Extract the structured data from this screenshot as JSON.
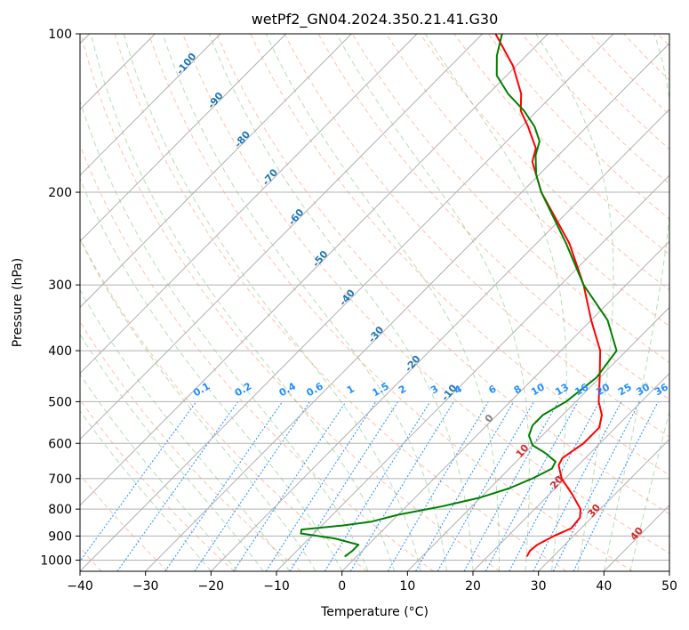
{
  "chart_data": {
    "type": "line",
    "title": "wetPf2_GN04.2024.350.21.41.G30",
    "xlabel": "Temperature (°C)",
    "ylabel": "Pressure (hPa)",
    "xlim": [
      -40,
      50
    ],
    "ylim": [
      1050,
      100
    ],
    "y_scale": "log",
    "grid": true,
    "x_ticks": [
      -40,
      -30,
      -20,
      -10,
      0,
      10,
      20,
      30,
      40,
      50
    ],
    "y_ticks": [
      100,
      200,
      300,
      400,
      500,
      600,
      700,
      800,
      900,
      1000
    ],
    "series": [
      {
        "color": "#ff0000",
        "points": [
          {
            "p": 985,
            "t": 26.0
          },
          {
            "p": 960,
            "t": 25.6
          },
          {
            "p": 935,
            "t": 25.8
          },
          {
            "p": 900,
            "t": 27.0
          },
          {
            "p": 870,
            "t": 28.5
          },
          {
            "p": 830,
            "t": 28.2
          },
          {
            "p": 800,
            "t": 27.0
          },
          {
            "p": 750,
            "t": 23.5
          },
          {
            "p": 700,
            "t": 19.5
          },
          {
            "p": 660,
            "t": 17.0
          },
          {
            "p": 640,
            "t": 16.5
          },
          {
            "p": 600,
            "t": 17.5
          },
          {
            "p": 560,
            "t": 17.5
          },
          {
            "p": 530,
            "t": 16.0
          },
          {
            "p": 500,
            "t": 13.5
          },
          {
            "p": 450,
            "t": 10.0
          },
          {
            "p": 400,
            "t": 6.0
          },
          {
            "p": 350,
            "t": 0.0
          },
          {
            "p": 300,
            "t": -6.5
          },
          {
            "p": 250,
            "t": -15.0
          },
          {
            "p": 200,
            "t": -27.0
          },
          {
            "p": 175,
            "t": -33.0
          },
          {
            "p": 165,
            "t": -34.5
          },
          {
            "p": 150,
            "t": -39.0
          },
          {
            "p": 140,
            "t": -42.5
          },
          {
            "p": 130,
            "t": -45.0
          },
          {
            "p": 115,
            "t": -50.5
          },
          {
            "p": 100,
            "t": -58.0
          }
        ]
      },
      {
        "color": "#008000",
        "points": [
          {
            "p": 985,
            "t": -1.8
          },
          {
            "p": 960,
            "t": -1.5
          },
          {
            "p": 935,
            "t": -1.5
          },
          {
            "p": 910,
            "t": -6.0
          },
          {
            "p": 890,
            "t": -12.0
          },
          {
            "p": 875,
            "t": -12.5
          },
          {
            "p": 860,
            "t": -7.0
          },
          {
            "p": 845,
            "t": -3.0
          },
          {
            "p": 820,
            "t": 0.0
          },
          {
            "p": 790,
            "t": 5.5
          },
          {
            "p": 760,
            "t": 10.0
          },
          {
            "p": 730,
            "t": 13.0
          },
          {
            "p": 700,
            "t": 15.0
          },
          {
            "p": 670,
            "t": 16.5
          },
          {
            "p": 650,
            "t": 16.0
          },
          {
            "p": 625,
            "t": 13.0
          },
          {
            "p": 605,
            "t": 10.0
          },
          {
            "p": 580,
            "t": 8.0
          },
          {
            "p": 555,
            "t": 7.0
          },
          {
            "p": 530,
            "t": 7.0
          },
          {
            "p": 500,
            "t": 8.5
          },
          {
            "p": 450,
            "t": 9.5
          },
          {
            "p": 400,
            "t": 8.5
          },
          {
            "p": 350,
            "t": 2.5
          },
          {
            "p": 300,
            "t": -6.5
          },
          {
            "p": 250,
            "t": -15.5
          },
          {
            "p": 200,
            "t": -27.0
          },
          {
            "p": 185,
            "t": -30.5
          },
          {
            "p": 170,
            "t": -33.5
          },
          {
            "p": 160,
            "t": -35.0
          },
          {
            "p": 150,
            "t": -38.0
          },
          {
            "p": 140,
            "t": -42.0
          },
          {
            "p": 130,
            "t": -47.0
          },
          {
            "p": 120,
            "t": -51.5
          },
          {
            "p": 110,
            "t": -54.5
          },
          {
            "p": 100,
            "t": -57.0
          }
        ]
      }
    ],
    "reference_lines": {
      "isotherms": {
        "color": "#b0b0b0"
      },
      "dry_adiabats": {
        "color": "#ffa07a",
        "style": "dashed"
      },
      "moist_adiabats": {
        "color": "#2ca02c",
        "style": "dashed"
      },
      "mixing_ratio": {
        "color": "#1e90ff",
        "style": "dotted"
      }
    },
    "isotherm_labels": [
      {
        "text": "-100",
        "t": -100,
        "p": 115
      },
      {
        "text": "-90",
        "t": -90,
        "p": 135
      },
      {
        "text": "-80",
        "t": -80,
        "p": 160
      },
      {
        "text": "-70",
        "t": -70,
        "p": 189
      },
      {
        "text": "-60",
        "t": -60,
        "p": 225
      },
      {
        "text": "-50",
        "t": -50,
        "p": 270
      },
      {
        "text": "-40",
        "t": -40,
        "p": 320
      },
      {
        "text": "-30",
        "t": -30,
        "p": 376
      },
      {
        "text": "-20",
        "t": -20,
        "p": 427
      },
      {
        "text": "-10",
        "t": -10,
        "p": 485
      },
      {
        "text": "0",
        "t": 0,
        "p": 543
      },
      {
        "text": "10",
        "t": 10,
        "p": 626
      },
      {
        "text": "20",
        "t": 20,
        "p": 718
      },
      {
        "text": "30",
        "t": 30,
        "p": 813
      },
      {
        "text": "40",
        "t": 40,
        "p": 899
      }
    ],
    "mixing_ratio_labels": [
      "0.1",
      "0.2",
      "0.4",
      "0.6",
      "1",
      "1.5",
      "2",
      "3",
      "4",
      "6",
      "8",
      "10",
      "13",
      "16",
      "20",
      "25",
      "30",
      "36"
    ],
    "mixing_ratio_label_pressure": 480
  }
}
